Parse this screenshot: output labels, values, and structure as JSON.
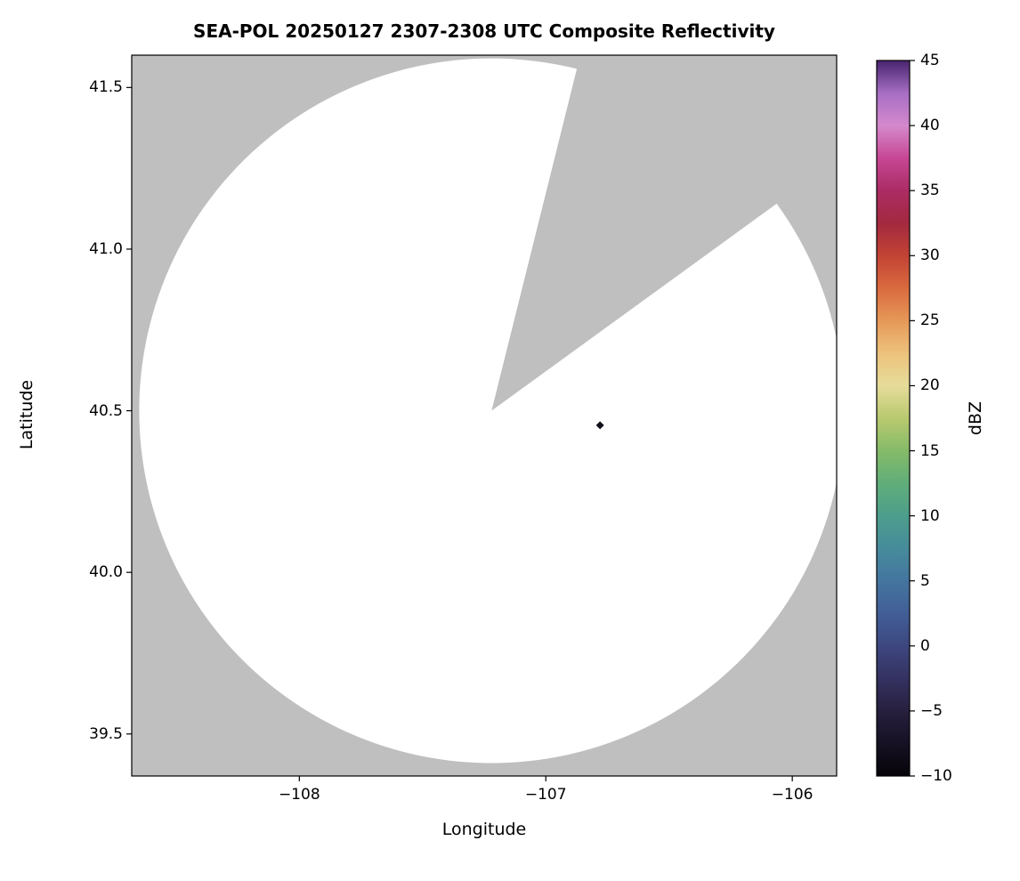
{
  "figure": {
    "background": "#ffffff"
  },
  "chart_data": {
    "type": "heatmap",
    "title": "SEA-POL 20250127 2307-2308 UTC Composite Reflectivity",
    "xlabel": "Longitude",
    "ylabel": "Latitude",
    "xlim": [
      -108.68,
      -105.82
    ],
    "ylim": [
      39.37,
      41.6
    ],
    "grid": false,
    "xticks": [
      {
        "value": -108,
        "label": "−108"
      },
      {
        "value": -107,
        "label": "−107"
      },
      {
        "value": -106,
        "label": "−106"
      }
    ],
    "yticks": [
      {
        "value": 41.5,
        "label": "41.5"
      },
      {
        "value": 41.0,
        "label": "41.0"
      },
      {
        "value": 40.5,
        "label": "40.5"
      },
      {
        "value": 40.0,
        "label": "40.0"
      },
      {
        "value": 39.5,
        "label": "39.5"
      }
    ],
    "no_coverage_color": "#bfbfbf",
    "coverage_disk": {
      "center_lon": -107.22,
      "center_lat": 40.5,
      "radius_lat_deg": 1.09,
      "fill": "#ffffff",
      "missing_sector_azimuth_deg": [
        14,
        54
      ]
    },
    "echoes": [
      {
        "lon": -106.78,
        "lat": 40.455,
        "marker": "diamond",
        "color": "#150f1d"
      }
    ],
    "colorbar": {
      "label": "dBZ",
      "vmin": -10,
      "vmax": 45,
      "ticks": [
        {
          "value": 45,
          "label": "45"
        },
        {
          "value": 40,
          "label": "40"
        },
        {
          "value": 35,
          "label": "35"
        },
        {
          "value": 30,
          "label": "30"
        },
        {
          "value": 25,
          "label": "25"
        },
        {
          "value": 20,
          "label": "20"
        },
        {
          "value": 15,
          "label": "15"
        },
        {
          "value": 10,
          "label": "10"
        },
        {
          "value": 5,
          "label": "5"
        },
        {
          "value": 0,
          "label": "0"
        },
        {
          "value": -5,
          "label": "−5"
        },
        {
          "value": -10,
          "label": "−10"
        }
      ],
      "stops": [
        {
          "value": -10,
          "color": "#060409"
        },
        {
          "value": -7.5,
          "color": "#161123"
        },
        {
          "value": -5,
          "color": "#271f3e"
        },
        {
          "value": -2.5,
          "color": "#343261"
        },
        {
          "value": 0,
          "color": "#3d477f"
        },
        {
          "value": 2.5,
          "color": "#425e97"
        },
        {
          "value": 5,
          "color": "#44759f"
        },
        {
          "value": 7.5,
          "color": "#468b9b"
        },
        {
          "value": 10,
          "color": "#4d9e8c"
        },
        {
          "value": 12.5,
          "color": "#60ad79"
        },
        {
          "value": 15,
          "color": "#85bb68"
        },
        {
          "value": 17.5,
          "color": "#b9c96f"
        },
        {
          "value": 20,
          "color": "#e6dc9a"
        },
        {
          "value": 22.5,
          "color": "#edc27c"
        },
        {
          "value": 25,
          "color": "#e69858"
        },
        {
          "value": 27.5,
          "color": "#d96a3e"
        },
        {
          "value": 30,
          "color": "#c24334"
        },
        {
          "value": 32.5,
          "color": "#a3293f"
        },
        {
          "value": 35,
          "color": "#ab2c64"
        },
        {
          "value": 37.5,
          "color": "#c74795"
        },
        {
          "value": 40,
          "color": "#d489cc"
        },
        {
          "value": 42.5,
          "color": "#a76ec4"
        },
        {
          "value": 45,
          "color": "#47246e"
        }
      ]
    }
  }
}
